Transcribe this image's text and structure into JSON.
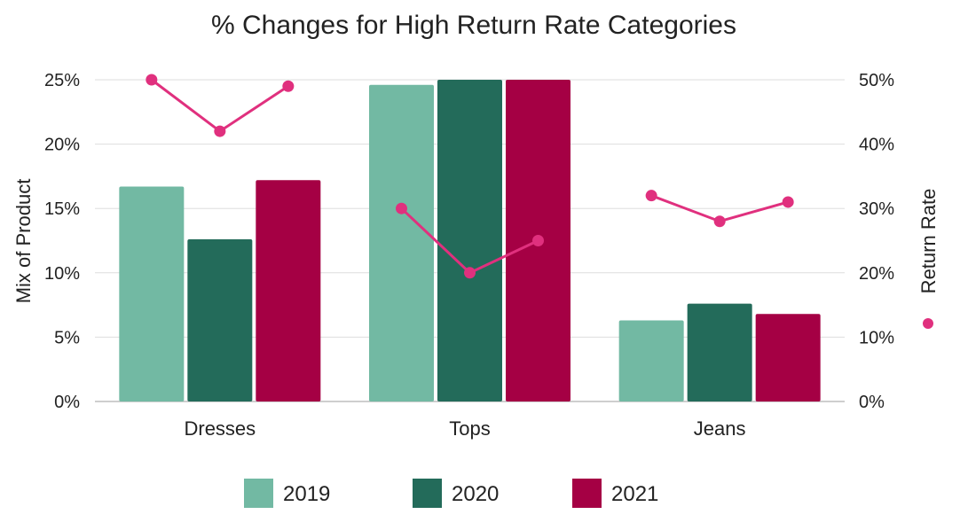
{
  "chart_data": {
    "type": "bar",
    "title": "% Changes for High Return Rate Categories",
    "categories": [
      "Dresses",
      "Tops",
      "Jeans"
    ],
    "ylabel": "Mix of Product",
    "y2label": "Return Rate",
    "ylim": [
      0,
      25
    ],
    "y2lim": [
      0,
      50
    ],
    "yticks": [
      "0%",
      "5%",
      "10%",
      "15%",
      "20%",
      "25%"
    ],
    "y2ticks": [
      "0%",
      "10%",
      "20%",
      "30%",
      "40%",
      "50%"
    ],
    "grid": true,
    "legend": "bottom",
    "series": [
      {
        "name": "2019",
        "color": "#72b9a3",
        "values": [
          16.7,
          24.6,
          6.3
        ]
      },
      {
        "name": "2020",
        "color": "#236b5a",
        "values": [
          12.6,
          25.0,
          7.6
        ]
      },
      {
        "name": "2021",
        "color": "#a50044",
        "values": [
          17.2,
          25.0,
          6.8
        ]
      }
    ],
    "return_rate": {
      "type": "line",
      "axis": "right",
      "color": "#e0307e",
      "values": [
        [
          50,
          42,
          49
        ],
        [
          30,
          20,
          25
        ],
        [
          32,
          28,
          31
        ]
      ]
    }
  }
}
